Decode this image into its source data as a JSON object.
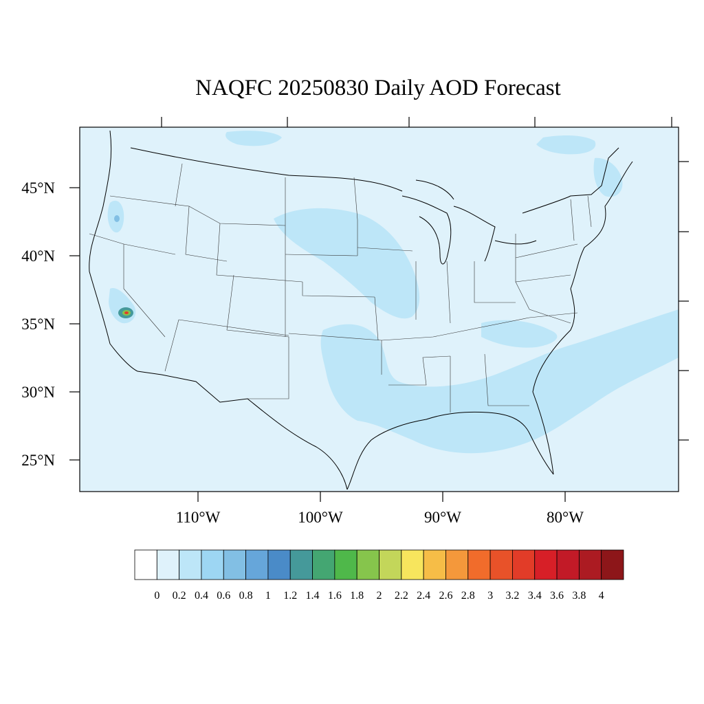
{
  "title": "NAQFC 20250830 Daily AOD Forecast",
  "lat_labels": [
    "45°N",
    "40°N",
    "35°N",
    "30°N",
    "25°N"
  ],
  "lon_labels": [
    "110°W",
    "100°W",
    "90°W",
    "80°W"
  ],
  "colorbar": {
    "colors": [
      "#ffffff",
      "#dff2fb",
      "#bde6f8",
      "#9dd6f3",
      "#82bfe4",
      "#66a6da",
      "#4a8bc8",
      "#45999a",
      "#44a672",
      "#4fb84a",
      "#86c54c",
      "#c3d65a",
      "#f7e55d",
      "#f6bd47",
      "#f4983b",
      "#f16c2b",
      "#e85229",
      "#e23c28",
      "#d71f27",
      "#c21a27",
      "#ac1b22",
      "#8d1619"
    ],
    "tick_labels": [
      "0",
      "0.2",
      "0.4",
      "0.6",
      "0.8",
      "1",
      "1.2",
      "1.4",
      "1.6",
      "1.8",
      "2",
      "2.2",
      "2.4",
      "2.6",
      "2.8",
      "3",
      "3.2",
      "3.4",
      "3.6",
      "3.8",
      "4"
    ]
  }
}
